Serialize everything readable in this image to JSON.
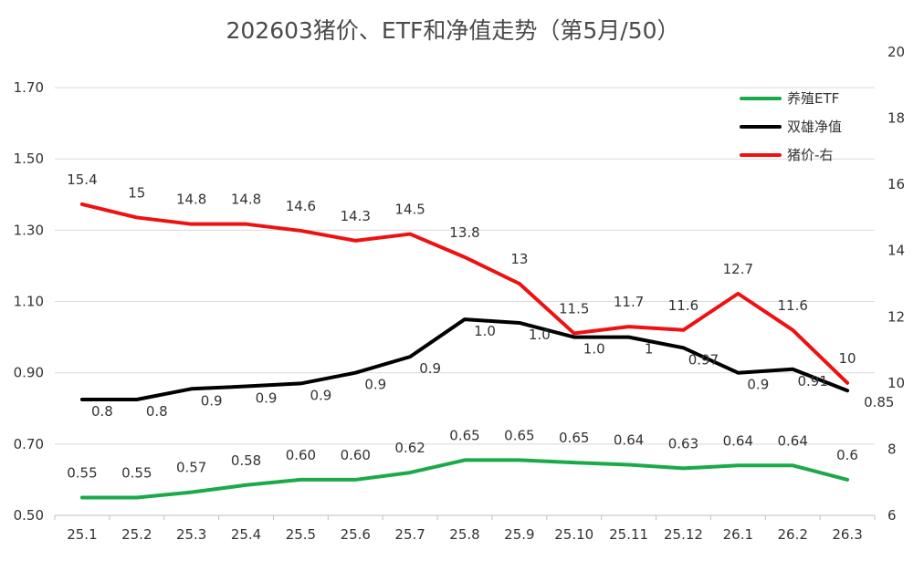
{
  "chart_data": {
    "type": "line",
    "title": "202603猪价、ETF和净值走势（第5月/50）",
    "categories": [
      "25.1",
      "25.2",
      "25.3",
      "25.4",
      "25.5",
      "25.6",
      "25.7",
      "25.8",
      "25.9",
      "25.10",
      "25.11",
      "25.12",
      "26.1",
      "26.2",
      "26.3"
    ],
    "left_axis": {
      "ylim": [
        0.5,
        1.8
      ],
      "ticks": [
        0.5,
        0.7,
        0.9,
        1.1,
        1.3,
        1.5,
        1.7
      ],
      "tick_labels": [
        "0.50",
        "0.70",
        "0.90",
        "1.10",
        "1.30",
        "1.50",
        "1.70"
      ]
    },
    "right_axis": {
      "ylim": [
        6,
        20
      ],
      "ticks": [
        6,
        8,
        10,
        12,
        14,
        16,
        18,
        20
      ],
      "tick_labels": [
        "6",
        "8",
        "10",
        "12",
        "14",
        "16",
        "18",
        "20"
      ]
    },
    "grid": true,
    "legend_position": "top-right",
    "series": [
      {
        "name": "养殖ETF",
        "axis": "left",
        "color": "#1aaa4a",
        "values": [
          0.55,
          0.55,
          0.565,
          0.585,
          0.6,
          0.6,
          0.62,
          0.655,
          0.655,
          0.648,
          0.642,
          0.632,
          0.64,
          0.64,
          0.6
        ],
        "labels": [
          "0.55",
          "0.55",
          "0.57",
          "0.58",
          "0.60",
          "0.60",
          "0.62",
          "0.65",
          "0.65",
          "0.65",
          "0.64",
          "0.63",
          "0.64",
          "0.64",
          "0.6"
        ]
      },
      {
        "name": "双雄净值",
        "axis": "left",
        "color": "#000000",
        "values": [
          0.825,
          0.825,
          0.855,
          0.862,
          0.87,
          0.9,
          0.945,
          1.05,
          1.04,
          1.0,
          1.0,
          0.97,
          0.9,
          0.91,
          0.85
        ],
        "labels": [
          "0.8",
          "0.8",
          "0.9",
          "0.9",
          "0.9",
          "0.9",
          "0.9",
          "1.0",
          "1.0",
          "1.0",
          "1",
          "0.97",
          "0.9",
          "0.91",
          "0.85"
        ]
      },
      {
        "name": "猪价-右",
        "axis": "right",
        "color": "#ee1111",
        "values": [
          15.4,
          15,
          14.8,
          14.8,
          14.6,
          14.3,
          14.5,
          13.8,
          13,
          11.5,
          11.7,
          11.6,
          12.7,
          11.6,
          10
        ],
        "labels": [
          "15.4",
          "15",
          "14.8",
          "14.8",
          "14.6",
          "14.3",
          "14.5",
          "13.8",
          "13",
          "11.5",
          "11.7",
          "11.6",
          "12.7",
          "11.6",
          "10"
        ]
      }
    ]
  }
}
